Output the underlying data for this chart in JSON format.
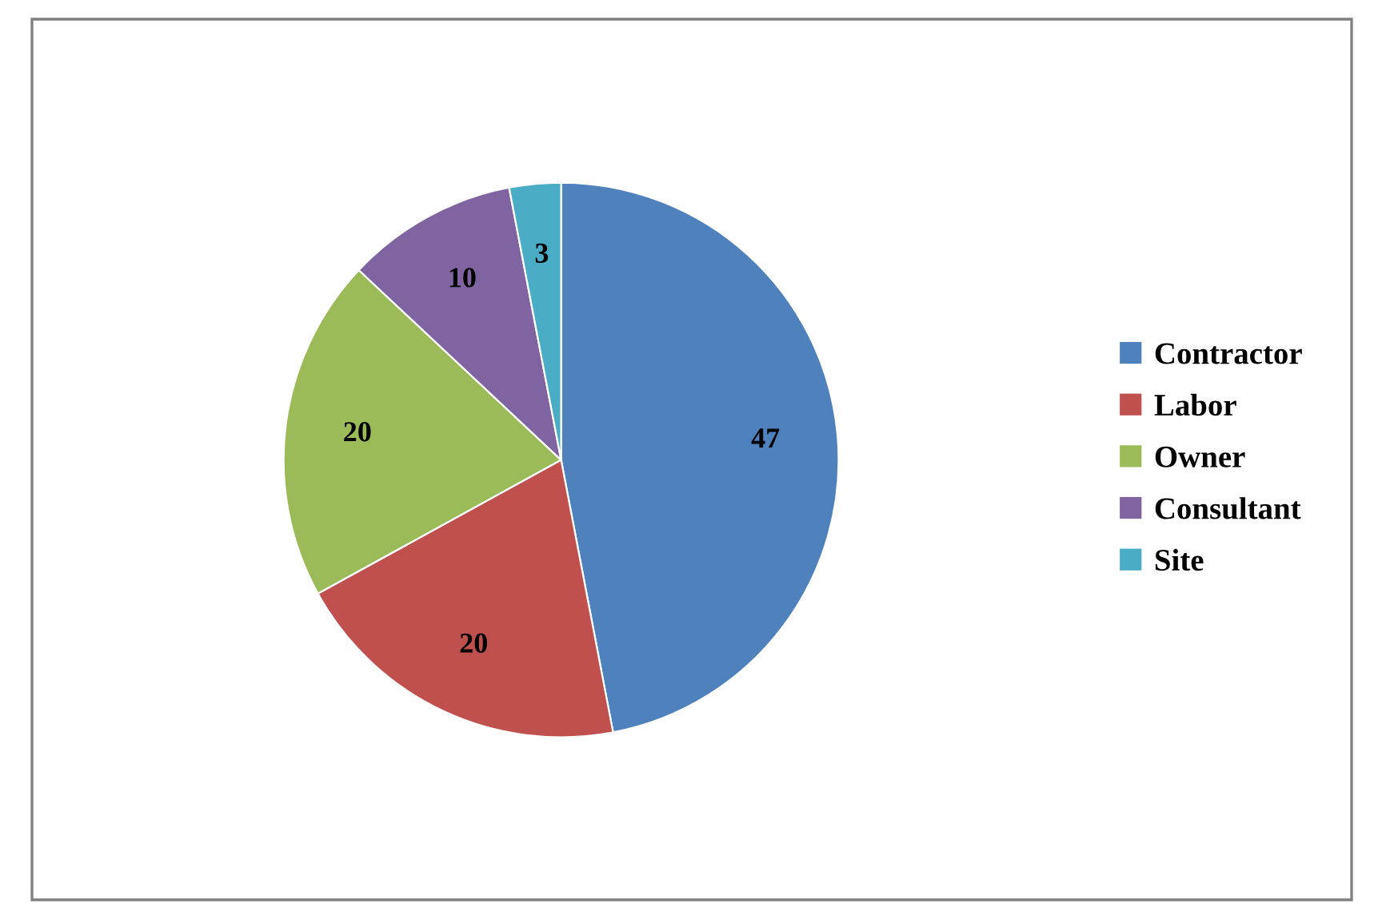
{
  "chart_data": {
    "type": "pie",
    "categories": [
      "Contractor",
      "Labor",
      "Owner",
      "Consultant",
      "Site"
    ],
    "values": [
      47,
      20,
      20,
      10,
      3
    ],
    "colors": [
      "#4f81bd",
      "#c0504d",
      "#9bbb59",
      "#8064a2",
      "#4bacc6"
    ],
    "data_labels": true,
    "legend": "right"
  }
}
